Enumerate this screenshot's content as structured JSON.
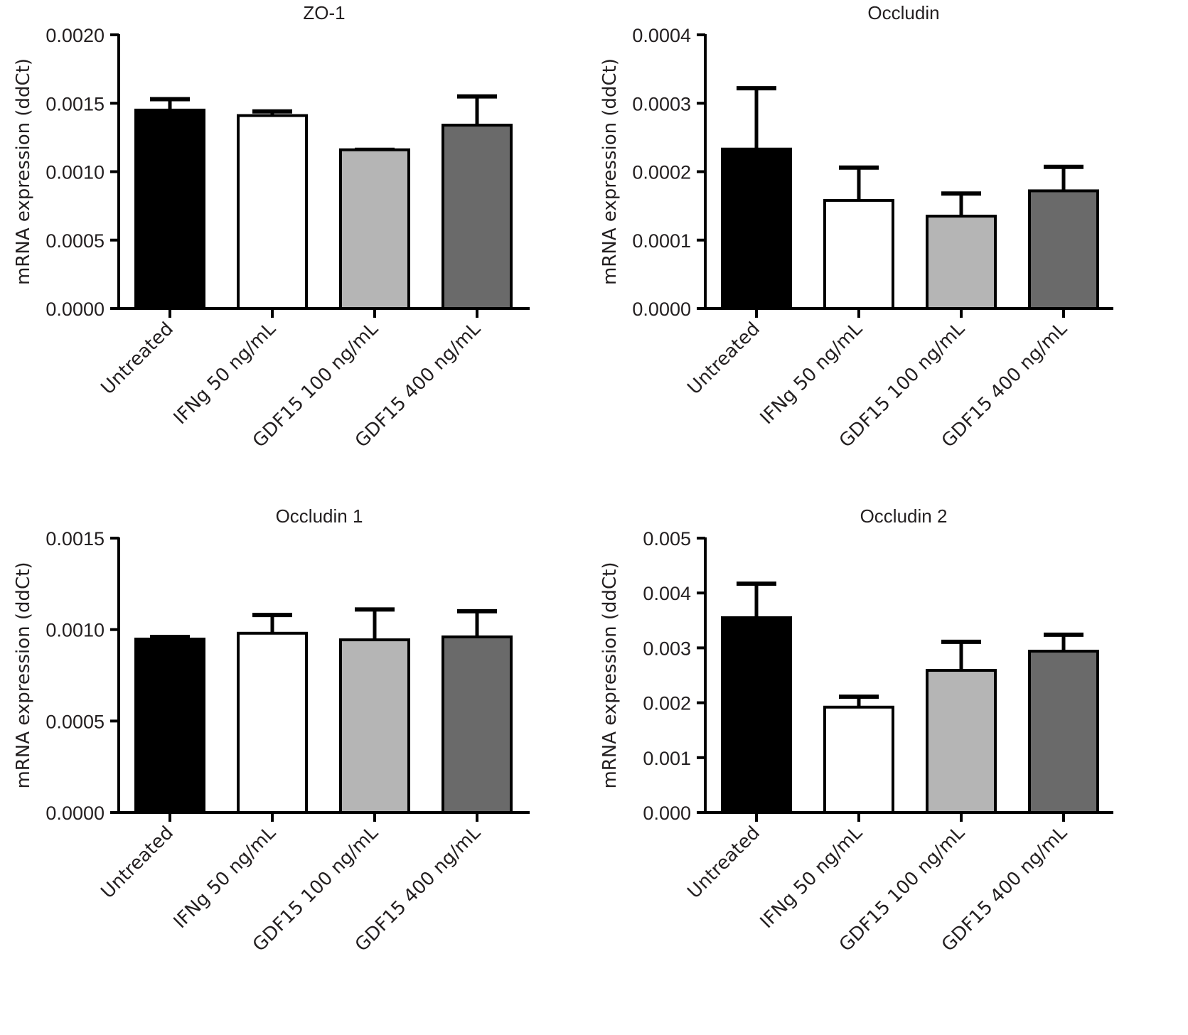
{
  "figure": {
    "group_colors": [
      "#000000",
      "#ffffff",
      "#b5b5b5",
      "#6a6a6a"
    ],
    "outline_color": "#000000"
  },
  "chart_data": [
    {
      "type": "bar",
      "title": "ZO-1",
      "xlabel": "",
      "ylabel": "mRNA expression (ddCt)",
      "categories": [
        "Untreated",
        "IFNg 50 ng/mL",
        "GDF15 100 ng/mL",
        "GDF15 400 ng/mL"
      ],
      "values": [
        0.00145,
        0.00141,
        0.00116,
        0.00134
      ],
      "error_upper": [
        0.00153,
        0.00144,
        0.00116,
        0.00155
      ],
      "ylim": [
        0,
        0.002
      ],
      "yticks": [
        0,
        0.0005,
        0.001,
        0.0015,
        0.002
      ],
      "ytick_labels": [
        "0.0000",
        "0.0005",
        "0.0010",
        "0.0015",
        "0.0020"
      ],
      "grid": false,
      "legend": "none"
    },
    {
      "type": "bar",
      "title": "Occludin",
      "xlabel": "",
      "ylabel": "mRNA expression (ddCt)",
      "categories": [
        "Untreated",
        "IFNg 50 ng/mL",
        "GDF15 100 ng/mL",
        "GDF15 400 ng/mL"
      ],
      "values": [
        0.000233,
        0.000158,
        0.000135,
        0.000172
      ],
      "error_upper": [
        0.000322,
        0.000206,
        0.000168,
        0.000207
      ],
      "ylim": [
        0,
        0.0004
      ],
      "yticks": [
        0,
        0.0001,
        0.0002,
        0.0003,
        0.0004
      ],
      "ytick_labels": [
        "0.0000",
        "0.0001",
        "0.0002",
        "0.0003",
        "0.0004"
      ],
      "grid": false,
      "legend": "none"
    },
    {
      "type": "bar",
      "title": "Occludin 1",
      "xlabel": "",
      "ylabel": "mRNA expression (ddCt)",
      "categories": [
        "Untreated",
        "IFNg 50 ng/mL",
        "GDF15 100 ng/mL",
        "GDF15 400 ng/mL"
      ],
      "values": [
        0.000948,
        0.00098,
        0.000944,
        0.00096
      ],
      "error_upper": [
        0.00096,
        0.00108,
        0.00111,
        0.0011
      ],
      "ylim": [
        0,
        0.0015
      ],
      "yticks": [
        0,
        0.0005,
        0.001,
        0.0015
      ],
      "ytick_labels": [
        "0.0000",
        "0.0005",
        "0.0010",
        "0.0015"
      ],
      "grid": false,
      "legend": "none"
    },
    {
      "type": "bar",
      "title": "Occludin 2",
      "xlabel": "",
      "ylabel": "mRNA expression (ddCt)",
      "categories": [
        "Untreated",
        "IFNg 50 ng/mL",
        "GDF15 100 ng/mL",
        "GDF15 400 ng/mL"
      ],
      "values": [
        0.00355,
        0.00192,
        0.00259,
        0.00294
      ],
      "error_upper": [
        0.00417,
        0.00211,
        0.00311,
        0.00324
      ],
      "ylim": [
        0,
        0.005
      ],
      "yticks": [
        0,
        0.001,
        0.002,
        0.003,
        0.004,
        0.005
      ],
      "ytick_labels": [
        "0.000",
        "0.001",
        "0.002",
        "0.003",
        "0.004",
        "0.005"
      ],
      "grid": false,
      "legend": "none"
    }
  ]
}
